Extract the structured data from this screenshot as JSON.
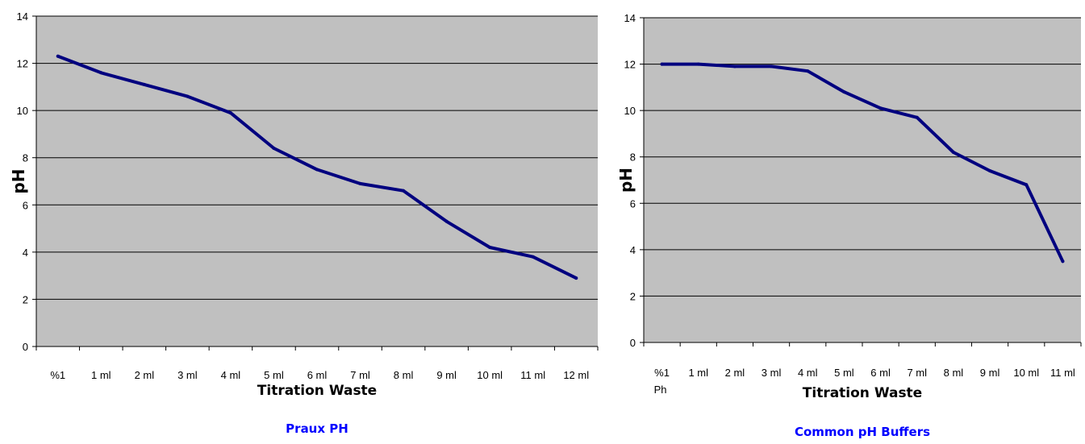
{
  "chart_data": [
    {
      "type": "line",
      "title": "Praux PH",
      "xlabel": "Titration Waste",
      "ylabel": "pH",
      "categories": [
        "%1",
        "1 ml",
        "2 ml",
        "3 ml",
        "4 ml",
        "5 ml",
        "6 ml",
        "7 ml",
        "8 ml",
        "9 ml",
        "10 ml",
        "11 ml",
        "12 ml"
      ],
      "ylim": [
        0,
        14
      ],
      "yticks": [
        0,
        2,
        4,
        6,
        8,
        10,
        12,
        14
      ],
      "grid": true,
      "series": [
        {
          "values": [
            12.3,
            11.6,
            11.1,
            10.6,
            9.9,
            8.4,
            7.5,
            6.9,
            6.6,
            5.3,
            4.2,
            3.8,
            2.9
          ]
        }
      ],
      "colors": {
        "line": "#00007f",
        "plot_bg": "#c0c0c0",
        "title": "#0000ff"
      }
    },
    {
      "type": "line",
      "title": "Common pH Buffers",
      "xlabel": "Titration Waste",
      "ylabel": "pH",
      "categories": [
        "%1",
        "1 ml",
        "2 ml",
        "3 ml",
        "4 ml",
        "5 ml",
        "6 ml",
        "7 ml",
        "8 ml",
        "9 ml",
        "10 ml",
        "11 ml"
      ],
      "first_category_sublabel": "Ph",
      "ylim": [
        0,
        14
      ],
      "yticks": [
        0,
        2,
        4,
        6,
        8,
        10,
        12,
        14
      ],
      "grid": true,
      "series": [
        {
          "values": [
            12.0,
            12.0,
            11.9,
            11.9,
            11.7,
            10.8,
            10.1,
            9.7,
            8.2,
            7.4,
            6.8,
            3.5
          ]
        }
      ],
      "colors": {
        "line": "#00007f",
        "plot_bg": "#c0c0c0",
        "title": "#0000ff"
      }
    }
  ]
}
